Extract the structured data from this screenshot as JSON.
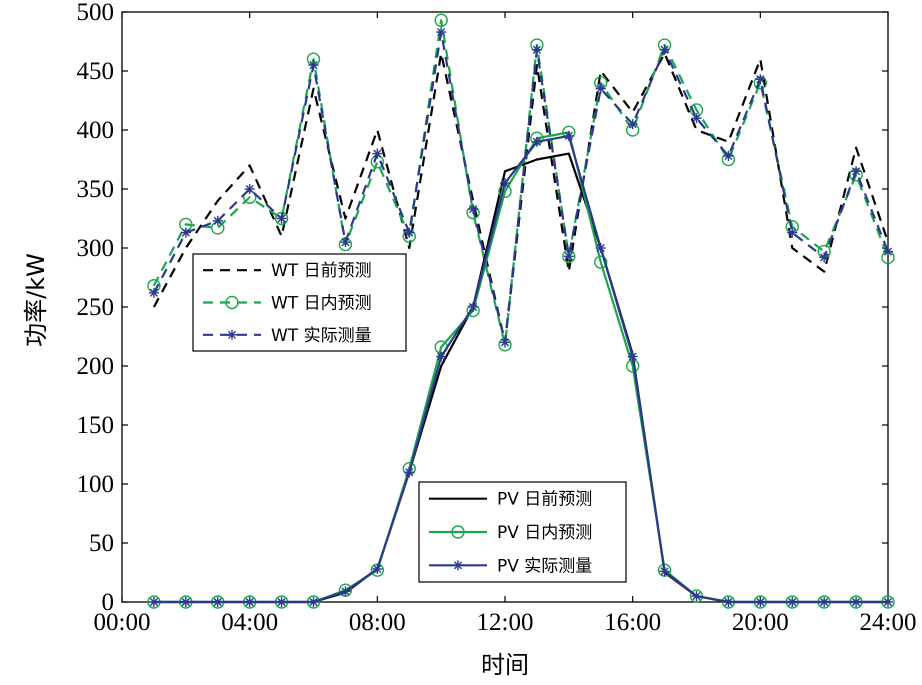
{
  "chart_data": {
    "type": "line",
    "xlabel": "时间",
    "ylabel": "功率/kW",
    "xlim": [
      0,
      24
    ],
    "ylim": [
      0,
      500
    ],
    "x_ticks": [
      "00:00",
      "04:00",
      "08:00",
      "12:00",
      "16:00",
      "20:00",
      "24:00"
    ],
    "y_ticks": [
      "0",
      "50",
      "100",
      "150",
      "200",
      "250",
      "300",
      "350",
      "400",
      "450",
      "500"
    ],
    "grid": false,
    "x": [
      1,
      2,
      3,
      4,
      5,
      6,
      7,
      8,
      9,
      10,
      11,
      12,
      13,
      14,
      15,
      16,
      17,
      18,
      19,
      20,
      21,
      22,
      23,
      24
    ],
    "series": [
      {
        "name": "WT 日前预测",
        "group": "WT",
        "color": "#000000",
        "dash": "10,7",
        "marker": "none",
        "values": [
          250,
          300,
          340,
          370,
          310,
          435,
          325,
          400,
          300,
          465,
          340,
          220,
          455,
          280,
          450,
          415,
          465,
          400,
          390,
          460,
          300,
          280,
          385,
          305
        ]
      },
      {
        "name": "WT 日内预测",
        "group": "WT",
        "color": "#1aa84a",
        "dash": "10,7",
        "marker": "circle",
        "values": [
          268,
          320,
          317,
          343,
          325,
          460,
          303,
          373,
          310,
          493,
          330,
          218,
          472,
          293,
          440,
          400,
          472,
          417,
          375,
          440,
          318,
          297,
          362,
          292
        ]
      },
      {
        "name": "WT 实际测量",
        "group": "WT",
        "color": "#2b3a8f",
        "dash": "10,7",
        "marker": "star",
        "values": [
          262,
          313,
          323,
          350,
          325,
          455,
          305,
          380,
          313,
          483,
          333,
          220,
          468,
          293,
          435,
          405,
          468,
          410,
          378,
          443,
          313,
          292,
          365,
          297
        ]
      },
      {
        "name": "PV 日前预测",
        "group": "PV",
        "color": "#000000",
        "dash": "",
        "marker": "none",
        "values": [
          0,
          0,
          0,
          0,
          0,
          0,
          8,
          28,
          110,
          200,
          250,
          365,
          375,
          380,
          300,
          210,
          25,
          5,
          0,
          0,
          0,
          0,
          0,
          0
        ]
      },
      {
        "name": "PV 日内预测",
        "group": "PV",
        "color": "#1aa84a",
        "dash": "",
        "marker": "circle",
        "values": [
          0,
          0,
          0,
          0,
          0,
          0,
          10,
          27,
          113,
          216,
          247,
          348,
          393,
          398,
          288,
          200,
          27,
          5,
          0,
          0,
          0,
          0,
          0,
          0
        ]
      },
      {
        "name": "PV 实际测量",
        "group": "PV",
        "color": "#2b3a8f",
        "dash": "",
        "marker": "star",
        "values": [
          0,
          0,
          0,
          0,
          0,
          0,
          9,
          28,
          110,
          208,
          250,
          355,
          390,
          395,
          300,
          208,
          26,
          5,
          0,
          0,
          0,
          0,
          0,
          0
        ]
      }
    ],
    "legends": [
      {
        "group": "WT",
        "position": "upper-left"
      },
      {
        "group": "PV",
        "position": "lower-center"
      }
    ]
  }
}
